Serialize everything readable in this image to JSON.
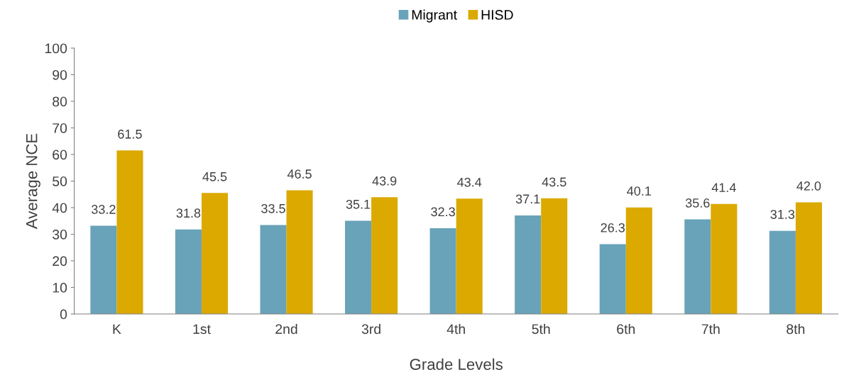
{
  "chart_data": {
    "type": "bar",
    "xlabel": "Grade Levels",
    "ylabel": "Average NCE",
    "categories": [
      "K",
      "1st",
      "2nd",
      "3rd",
      "4th",
      "5th",
      "6th",
      "7th",
      "8th"
    ],
    "series": [
      {
        "name": "Migrant",
        "color": "#68a3b9",
        "values": [
          33.2,
          31.8,
          33.5,
          35.1,
          32.3,
          37.1,
          26.3,
          35.6,
          31.3
        ],
        "value_labels": [
          "33.2",
          "31.8",
          "33.5",
          "35.1",
          "32.3",
          "37.1",
          "26.3",
          "35.6",
          "31.3"
        ]
      },
      {
        "name": "HISD",
        "color": "#dba900",
        "values": [
          61.5,
          45.5,
          46.5,
          43.9,
          43.4,
          43.5,
          40.1,
          41.4,
          42.0
        ],
        "value_labels": [
          "61.5",
          "45.5",
          "46.5",
          "43.9",
          "43.4",
          "43.5",
          "40.1",
          "41.4",
          "42.0"
        ]
      }
    ],
    "ylim": [
      0,
      100
    ],
    "yticks": [
      0,
      10,
      20,
      30,
      40,
      50,
      60,
      70,
      80,
      90,
      100
    ],
    "grid": false,
    "legend": "top"
  }
}
